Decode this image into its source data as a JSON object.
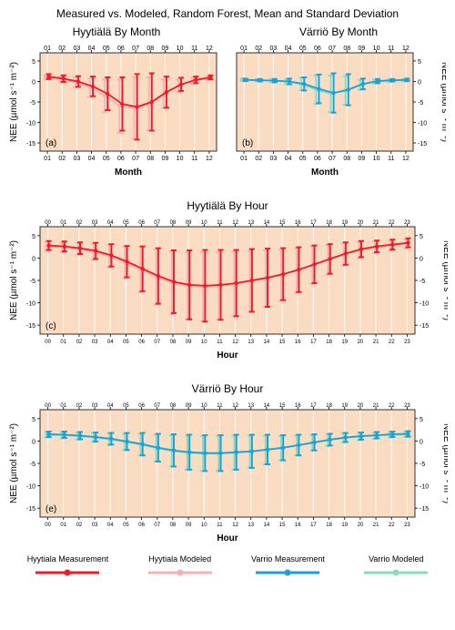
{
  "main_title": "Measured vs. Modeled, Random Forest, Mean and Standard Deviation",
  "title_fontsize": 12,
  "panel_title_fontsize": 12,
  "bg_color": "#fadcc2",
  "colors": {
    "hyytiala_meas": "#ee1c25",
    "hyytiala_model": "#f8b0b4",
    "varrio_meas": "#1f9fd7",
    "varrio_model": "#87dcc0"
  },
  "y_axis": {
    "label": "NEE (µmol s⁻¹ m⁻²)",
    "ticks": [
      5,
      0,
      -5,
      -10,
      -15
    ],
    "min": -17,
    "max": 7
  },
  "panels": {
    "a": {
      "title": "Hyytiälä By Month",
      "x_label": "Month",
      "letter": "(a)",
      "x_categories": [
        "01",
        "02",
        "03",
        "04",
        "05",
        "06",
        "07",
        "08",
        "09",
        "10",
        "11",
        "12"
      ],
      "series": [
        {
          "k": "hyytiala_model",
          "mean": [
            1,
            0.5,
            -0.2,
            -1.5,
            -3.5,
            -6,
            -6.5,
            -5.5,
            -3,
            -1,
            0.2,
            0.8
          ],
          "sd": [
            0.5,
            0.7,
            1.2,
            2.2,
            4,
            6.5,
            7.5,
            6.5,
            3.5,
            1.5,
            0.7,
            0.4
          ]
        },
        {
          "k": "hyytiala_meas",
          "mean": [
            1.2,
            0.7,
            0,
            -1.2,
            -3,
            -5.5,
            -6.2,
            -5,
            -2.6,
            -0.7,
            0.4,
            1
          ],
          "sd": [
            0.6,
            0.8,
            1.3,
            2.4,
            4,
            6.5,
            8,
            7,
            3.8,
            1.6,
            0.8,
            0.5
          ]
        }
      ]
    },
    "b": {
      "title": "Värriö By Month",
      "x_label": "Month",
      "letter": "(b)",
      "x_categories": [
        "01",
        "02",
        "03",
        "04",
        "05",
        "06",
        "07",
        "08",
        "09",
        "10",
        "11",
        "12"
      ],
      "series": [
        {
          "k": "varrio_model",
          "mean": [
            0.4,
            0.3,
            0.2,
            0,
            -0.6,
            -2,
            -3,
            -2.2,
            -0.8,
            0,
            0.2,
            0.3
          ],
          "sd": [
            0.3,
            0.3,
            0.4,
            0.6,
            1.5,
            3.5,
            4.5,
            3.5,
            1.2,
            0.5,
            0.3,
            0.3
          ]
        },
        {
          "k": "varrio_meas",
          "mean": [
            0.4,
            0.3,
            0.2,
            0,
            -0.6,
            -1.8,
            -2.8,
            -2,
            -0.6,
            0.1,
            0.3,
            0.4
          ],
          "sd": [
            0.3,
            0.3,
            0.4,
            0.7,
            1.6,
            3.5,
            4.8,
            3.8,
            1.3,
            0.5,
            0.3,
            0.3
          ]
        }
      ]
    },
    "c": {
      "title": "Hyytiälä By Hour",
      "x_label": "Hour",
      "letter": "(c)",
      "x_categories": [
        "00",
        "01",
        "02",
        "03",
        "04",
        "05",
        "06",
        "07",
        "08",
        "09",
        "10",
        "11",
        "12",
        "13",
        "14",
        "15",
        "16",
        "17",
        "18",
        "19",
        "20",
        "21",
        "22",
        "23"
      ],
      "series": [
        {
          "k": "hyytiala_model",
          "mean": [
            2.6,
            2.4,
            2,
            1.4,
            0.4,
            -1,
            -2.6,
            -4.2,
            -5.5,
            -6.2,
            -6.4,
            -6.2,
            -5.8,
            -5.2,
            -4.6,
            -3.8,
            -2.8,
            -1.6,
            -0.4,
            0.8,
            1.8,
            2.4,
            2.8,
            3.2
          ],
          "sd": [
            1,
            1.1,
            1.3,
            1.8,
            2.5,
            3.5,
            5,
            6.2,
            7,
            7.5,
            7.7,
            7.5,
            7.2,
            6.8,
            6.3,
            5.7,
            5,
            4.2,
            3.3,
            2.5,
            1.8,
            1.3,
            1.1,
            1
          ]
        },
        {
          "k": "hyytiala_meas",
          "mean": [
            2.8,
            2.6,
            2.2,
            1.6,
            0.6,
            -0.8,
            -2.4,
            -4,
            -5.3,
            -6,
            -6.2,
            -6,
            -5.6,
            -5,
            -4.4,
            -3.6,
            -2.6,
            -1.4,
            -0.2,
            1,
            2,
            2.6,
            3,
            3.4
          ],
          "sd": [
            1,
            1.1,
            1.3,
            1.8,
            2.5,
            3.5,
            5,
            6.2,
            7,
            7.7,
            8,
            7.8,
            7.4,
            7,
            6.5,
            5.8,
            5,
            4.2,
            3.3,
            2.5,
            1.8,
            1.3,
            1.1,
            1
          ]
        }
      ]
    },
    "e": {
      "title": "Värriö By Hour",
      "x_label": "Hour",
      "letter": "(e)",
      "x_categories": [
        "00",
        "01",
        "02",
        "03",
        "04",
        "05",
        "06",
        "07",
        "08",
        "09",
        "10",
        "11",
        "12",
        "13",
        "14",
        "15",
        "16",
        "17",
        "18",
        "19",
        "20",
        "21",
        "22",
        "23"
      ],
      "series": [
        {
          "k": "varrio_model",
          "mean": [
            1.4,
            1.3,
            1.1,
            0.8,
            0.4,
            -0.2,
            -0.8,
            -1.6,
            -2.2,
            -2.6,
            -2.8,
            -2.8,
            -2.6,
            -2.4,
            -2,
            -1.6,
            -1,
            -0.4,
            0.2,
            0.7,
            1,
            1.2,
            1.4,
            1.5
          ],
          "sd": [
            0.6,
            0.7,
            0.8,
            1,
            1.3,
            1.8,
            2.4,
            3,
            3.5,
            3.8,
            3.9,
            3.9,
            3.8,
            3.6,
            3.2,
            2.7,
            2.2,
            1.7,
            1.3,
            1,
            0.8,
            0.7,
            0.6,
            0.6
          ]
        },
        {
          "k": "varrio_meas",
          "mean": [
            1.5,
            1.4,
            1.2,
            0.9,
            0.5,
            -0.1,
            -0.7,
            -1.5,
            -2.1,
            -2.5,
            -2.7,
            -2.7,
            -2.5,
            -2.3,
            -1.9,
            -1.5,
            -0.9,
            -0.3,
            0.3,
            0.8,
            1.1,
            1.3,
            1.5,
            1.6
          ],
          "sd": [
            0.6,
            0.7,
            0.8,
            1,
            1.3,
            1.9,
            2.5,
            3.1,
            3.6,
            3.9,
            4,
            4,
            3.9,
            3.7,
            3.3,
            2.8,
            2.3,
            1.8,
            1.3,
            1,
            0.8,
            0.7,
            0.6,
            0.6
          ]
        }
      ]
    }
  },
  "legend": {
    "items": [
      {
        "label": "Hyytiala Measurement",
        "k": "hyytiala_meas"
      },
      {
        "label": "Hyytiala Modeled",
        "k": "hyytiala_model"
      },
      {
        "label": "Varrio Measurement",
        "k": "varrio_meas"
      },
      {
        "label": "Varrio Modeled",
        "k": "varrio_model"
      }
    ]
  }
}
